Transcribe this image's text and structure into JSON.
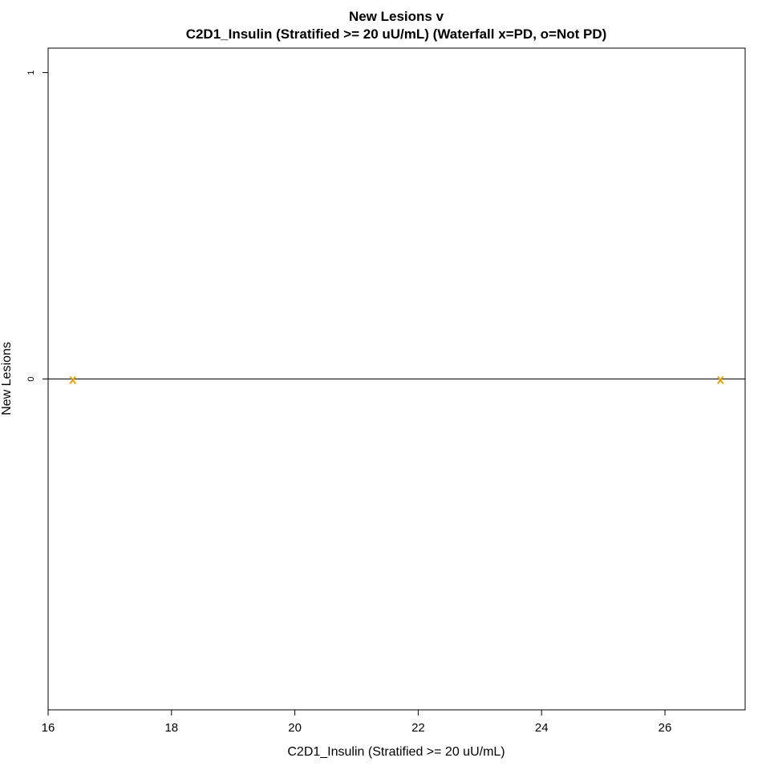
{
  "chart_data": {
    "type": "scatter",
    "title": "New Lesions v",
    "subtitle": "C2D1_Insulin (Stratified >= 20 uU/mL) (Waterfall x=PD, o=Not PD)",
    "xlabel": "C2D1_Insulin (Stratified >= 20 uU/mL)",
    "ylabel": "New Lesions",
    "xlim": [
      16,
      27.3
    ],
    "ylim": [
      -1.08,
      1.08
    ],
    "x_ticks": [
      "16",
      "18",
      "20",
      "22",
      "24",
      "26"
    ],
    "y_ticks": [
      "0",
      "1"
    ],
    "reference_line_y": 0,
    "grid": false,
    "legend": "none",
    "marker_color": "#E69F00",
    "points": [
      {
        "x": 16.4,
        "y": 0,
        "marker": "x"
      },
      {
        "x": 26.9,
        "y": 0,
        "marker": "x"
      }
    ]
  }
}
